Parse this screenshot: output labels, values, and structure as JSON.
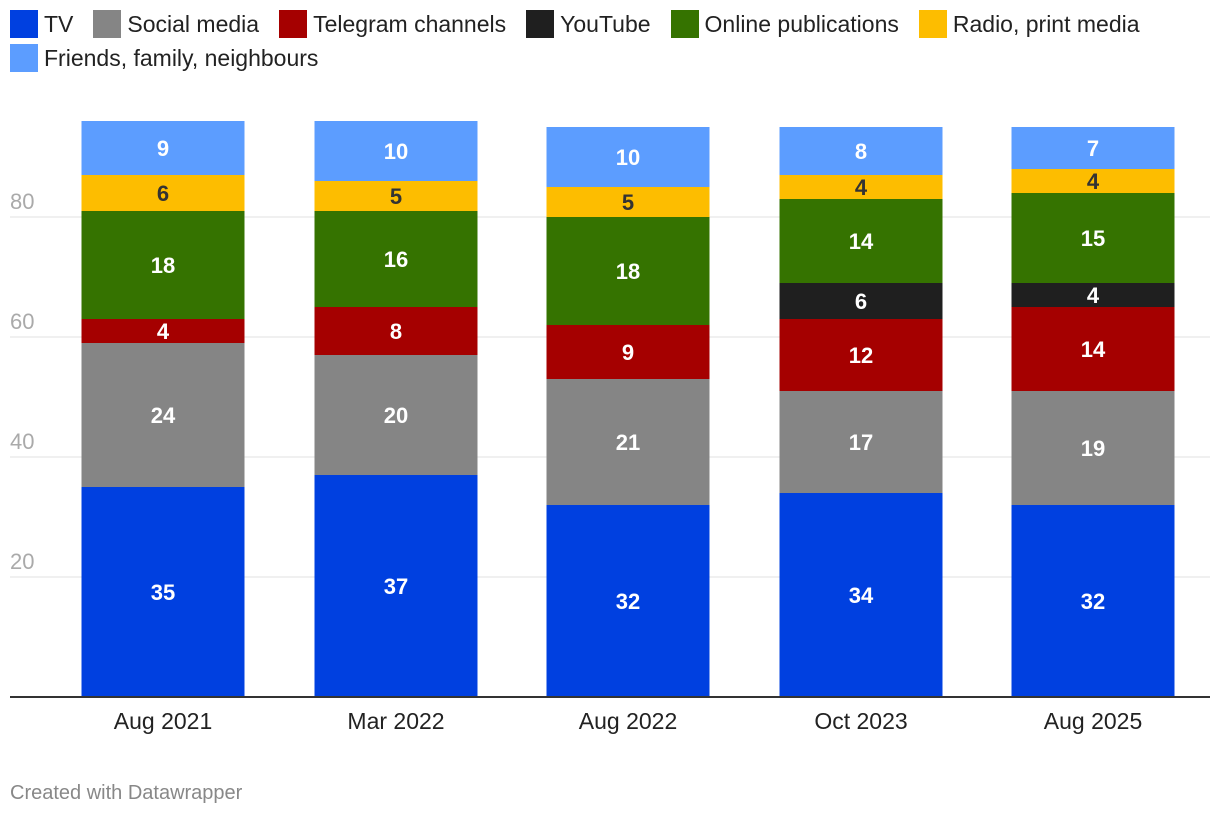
{
  "chart_data": {
    "type": "bar",
    "stacked": true,
    "categories": [
      "Aug 2021",
      "Mar 2022",
      "Aug 2022",
      "Oct 2023",
      "Aug 2025"
    ],
    "series": [
      {
        "name": "TV",
        "color": "#0040e0",
        "label_color": "#ffffff",
        "values": [
          35,
          37,
          32,
          34,
          32
        ]
      },
      {
        "name": "Social media",
        "color": "#858585",
        "label_color": "#ffffff",
        "values": [
          24,
          20,
          21,
          17,
          19
        ]
      },
      {
        "name": "Telegram channels",
        "color": "#a50000",
        "label_color": "#ffffff",
        "values": [
          4,
          8,
          9,
          12,
          14
        ]
      },
      {
        "name": "YouTube",
        "color": "#1f1f1f",
        "label_color": "#ffffff",
        "values": [
          0,
          0,
          0,
          6,
          4
        ]
      },
      {
        "name": "Online publications",
        "color": "#357300",
        "label_color": "#ffffff",
        "values": [
          18,
          16,
          18,
          14,
          15
        ]
      },
      {
        "name": "Radio, print media",
        "color": "#fdbd00",
        "label_color": "#333333",
        "values": [
          6,
          5,
          5,
          4,
          4
        ]
      },
      {
        "name": "Friends, family, neighbours",
        "color": "#5c9dff",
        "label_color": "#ffffff",
        "values": [
          9,
          10,
          10,
          8,
          7
        ]
      }
    ],
    "y_ticks": [
      20,
      40,
      60,
      80
    ],
    "ylim": [
      0,
      96
    ],
    "grid": true,
    "legend_position": "top-left",
    "title": "",
    "xlabel": "",
    "ylabel": ""
  },
  "footer": {
    "credit": "Created with Datawrapper"
  }
}
